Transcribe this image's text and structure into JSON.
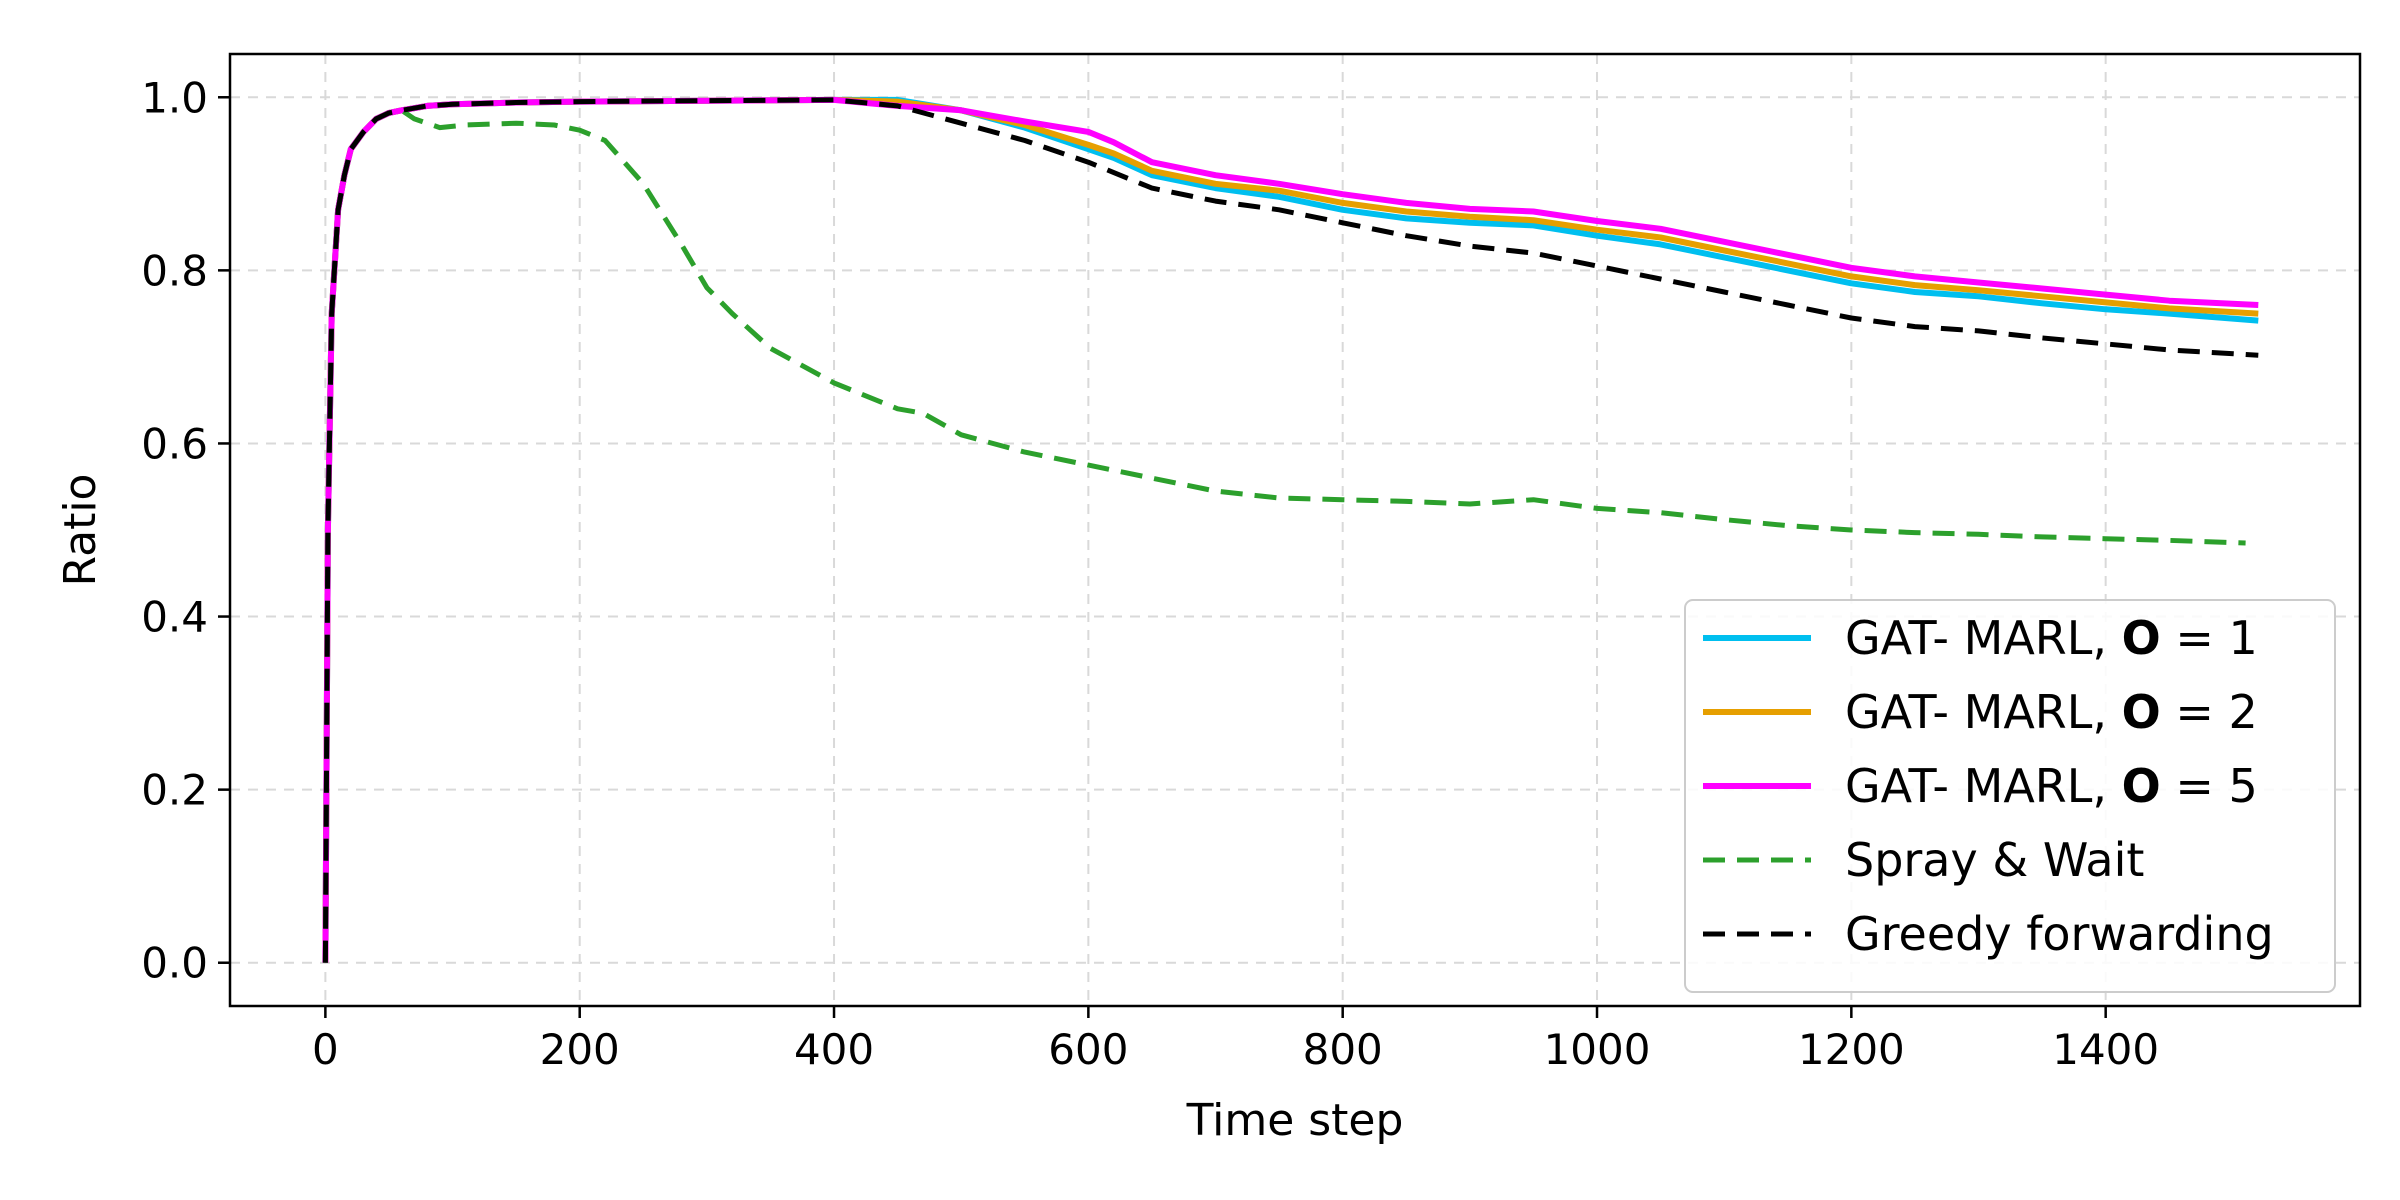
{
  "chart_data": {
    "type": "line",
    "xlabel": "Time step",
    "ylabel": "Ratio",
    "xlim": [
      -75,
      1600
    ],
    "ylim": [
      -0.05,
      1.05
    ],
    "xticks": [
      0,
      200,
      400,
      600,
      800,
      1000,
      1200,
      1400
    ],
    "yticks": [
      0.0,
      0.2,
      0.4,
      0.6,
      0.8,
      1.0
    ],
    "xtick_labels": [
      "0",
      "200",
      "400",
      "600",
      "800",
      "1000",
      "1200",
      "1400"
    ],
    "ytick_labels": [
      "0.0",
      "0.2",
      "0.4",
      "0.6",
      "0.8",
      "1.0"
    ],
    "grid": true,
    "legend_position": "lower-right",
    "series": [
      {
        "name": "GAT- MARL, O = 1",
        "label_prefix": "GAT- MARL, ",
        "label_symbol": "O",
        "label_suffix": " = 1",
        "color": "#00bfef",
        "style": "solid",
        "x": [
          0,
          2,
          5,
          10,
          15,
          20,
          30,
          40,
          50,
          60,
          80,
          100,
          150,
          200,
          300,
          400,
          450,
          500,
          550,
          600,
          620,
          650,
          700,
          750,
          800,
          850,
          900,
          950,
          1000,
          1050,
          1100,
          1150,
          1200,
          1250,
          1300,
          1350,
          1400,
          1450,
          1520
        ],
        "y": [
          0.0,
          0.5,
          0.75,
          0.87,
          0.91,
          0.94,
          0.96,
          0.975,
          0.982,
          0.985,
          0.99,
          0.992,
          0.994,
          0.995,
          0.996,
          0.997,
          0.997,
          0.985,
          0.965,
          0.94,
          0.93,
          0.91,
          0.895,
          0.885,
          0.87,
          0.86,
          0.855,
          0.852,
          0.84,
          0.83,
          0.815,
          0.8,
          0.785,
          0.775,
          0.77,
          0.762,
          0.755,
          0.75,
          0.742
        ]
      },
      {
        "name": "GAT- MARL, O = 2",
        "label_prefix": "GAT- MARL, ",
        "label_symbol": "O",
        "label_suffix": " = 2",
        "color": "#e69f00",
        "style": "solid",
        "x": [
          0,
          2,
          5,
          10,
          15,
          20,
          30,
          40,
          50,
          60,
          80,
          100,
          150,
          200,
          300,
          400,
          450,
          500,
          550,
          600,
          620,
          650,
          700,
          750,
          800,
          850,
          900,
          950,
          1000,
          1050,
          1100,
          1150,
          1200,
          1250,
          1300,
          1350,
          1400,
          1450,
          1520
        ],
        "y": [
          0.0,
          0.5,
          0.75,
          0.87,
          0.91,
          0.94,
          0.96,
          0.975,
          0.982,
          0.985,
          0.99,
          0.992,
          0.994,
          0.995,
          0.996,
          0.997,
          0.995,
          0.985,
          0.968,
          0.945,
          0.935,
          0.915,
          0.9,
          0.892,
          0.878,
          0.868,
          0.862,
          0.858,
          0.847,
          0.838,
          0.823,
          0.808,
          0.793,
          0.783,
          0.777,
          0.77,
          0.763,
          0.756,
          0.75
        ]
      },
      {
        "name": "GAT- MARL, O = 5",
        "label_prefix": "GAT- MARL, ",
        "label_symbol": "O",
        "label_suffix": " = 5",
        "color": "#ff00ff",
        "style": "solid",
        "x": [
          0,
          2,
          5,
          10,
          15,
          20,
          30,
          40,
          50,
          60,
          80,
          100,
          150,
          200,
          300,
          400,
          450,
          500,
          550,
          600,
          620,
          650,
          700,
          750,
          800,
          850,
          900,
          950,
          1000,
          1050,
          1100,
          1150,
          1200,
          1250,
          1300,
          1350,
          1400,
          1450,
          1520
        ],
        "y": [
          0.0,
          0.5,
          0.75,
          0.87,
          0.91,
          0.94,
          0.96,
          0.975,
          0.982,
          0.985,
          0.99,
          0.992,
          0.994,
          0.995,
          0.996,
          0.997,
          0.99,
          0.985,
          0.972,
          0.96,
          0.948,
          0.925,
          0.91,
          0.9,
          0.888,
          0.878,
          0.871,
          0.868,
          0.857,
          0.848,
          0.833,
          0.818,
          0.803,
          0.793,
          0.786,
          0.779,
          0.772,
          0.765,
          0.76
        ]
      },
      {
        "name": "Spray & Wait",
        "label_prefix": "Spray & Wait",
        "label_symbol": "",
        "label_suffix": "",
        "color": "#2ca02c",
        "style": "dashed",
        "x": [
          0,
          2,
          5,
          10,
          15,
          20,
          30,
          40,
          50,
          60,
          70,
          90,
          110,
          150,
          180,
          200,
          220,
          250,
          280,
          300,
          320,
          350,
          400,
          450,
          470,
          500,
          550,
          600,
          650,
          700,
          750,
          800,
          850,
          900,
          950,
          1000,
          1050,
          1100,
          1150,
          1200,
          1250,
          1300,
          1350,
          1400,
          1450,
          1510
        ],
        "y": [
          0.0,
          0.5,
          0.75,
          0.87,
          0.91,
          0.94,
          0.96,
          0.975,
          0.982,
          0.985,
          0.975,
          0.965,
          0.968,
          0.97,
          0.968,
          0.962,
          0.95,
          0.9,
          0.83,
          0.78,
          0.75,
          0.71,
          0.67,
          0.64,
          0.635,
          0.61,
          0.59,
          0.575,
          0.56,
          0.545,
          0.537,
          0.535,
          0.533,
          0.53,
          0.535,
          0.525,
          0.52,
          0.512,
          0.505,
          0.5,
          0.497,
          0.495,
          0.492,
          0.49,
          0.488,
          0.485
        ]
      },
      {
        "name": "Greedy forwarding",
        "label_prefix": "Greedy forwarding",
        "label_symbol": "",
        "label_suffix": "",
        "color": "#000000",
        "style": "dashed",
        "x": [
          0,
          2,
          5,
          10,
          15,
          20,
          30,
          40,
          50,
          60,
          80,
          100,
          150,
          200,
          300,
          400,
          450,
          500,
          550,
          600,
          650,
          700,
          750,
          800,
          850,
          900,
          950,
          1000,
          1050,
          1100,
          1150,
          1200,
          1250,
          1300,
          1350,
          1400,
          1450,
          1520
        ],
        "y": [
          0.0,
          0.5,
          0.75,
          0.87,
          0.91,
          0.94,
          0.96,
          0.975,
          0.982,
          0.985,
          0.99,
          0.992,
          0.994,
          0.995,
          0.996,
          0.997,
          0.99,
          0.97,
          0.95,
          0.925,
          0.895,
          0.88,
          0.87,
          0.855,
          0.84,
          0.828,
          0.82,
          0.805,
          0.79,
          0.775,
          0.76,
          0.745,
          0.735,
          0.73,
          0.722,
          0.715,
          0.708,
          0.702
        ]
      }
    ]
  }
}
